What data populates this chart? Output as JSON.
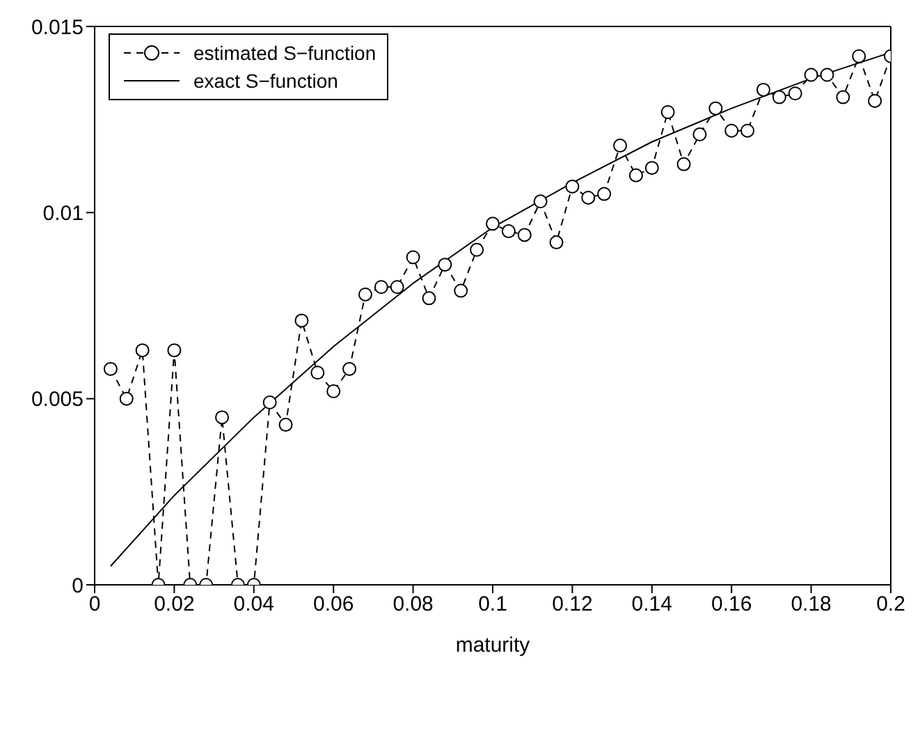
{
  "chart_data": {
    "type": "line",
    "xlabel": "maturity",
    "xlim": [
      0,
      0.2
    ],
    "xticks": [
      0,
      0.02,
      0.04,
      0.06,
      0.08,
      0.1,
      0.12,
      0.14,
      0.16,
      0.18,
      0.2
    ],
    "ylim": [
      0,
      0.015
    ],
    "yticks": [
      0,
      0.005,
      0.01,
      0.015
    ],
    "legend": "top left",
    "series": [
      {
        "name": "estimated S−function",
        "color": "#000000",
        "marker": "circle",
        "line_style": "dashed",
        "x": [
          0.004,
          0.008,
          0.012,
          0.016,
          0.02,
          0.024,
          0.028,
          0.032,
          0.036,
          0.04,
          0.044,
          0.048,
          0.052,
          0.056,
          0.06,
          0.064,
          0.068,
          0.072,
          0.076,
          0.08,
          0.084,
          0.088,
          0.092,
          0.096,
          0.1,
          0.104,
          0.108,
          0.112,
          0.116,
          0.12,
          0.124,
          0.128,
          0.132,
          0.136,
          0.14,
          0.144,
          0.148,
          0.152,
          0.156,
          0.16,
          0.164,
          0.168,
          0.172,
          0.176,
          0.18,
          0.184,
          0.188,
          0.192,
          0.196,
          0.2
        ],
        "values": [
          0.0058,
          0.005,
          0.0063,
          0,
          0.0063,
          0,
          0,
          0.0045,
          0,
          0,
          0.0049,
          0.0043,
          0.0071,
          0.0057,
          0.0052,
          0.0058,
          0.0078,
          0.008,
          0.008,
          0.0088,
          0.0077,
          0.0086,
          0.0079,
          0.009,
          0.0097,
          0.0095,
          0.0094,
          0.0103,
          0.0092,
          0.0107,
          0.0104,
          0.0105,
          0.0118,
          0.011,
          0.0112,
          0.0127,
          0.0113,
          0.0121,
          0.0128,
          0.0122,
          0.0122,
          0.0133,
          0.0131,
          0.0132,
          0.0137,
          0.0137,
          0.0131,
          0.0142,
          0.013,
          0.0142
        ]
      },
      {
        "name": "exact S−function",
        "color": "#000000",
        "marker": "none",
        "line_style": "solid",
        "x": [
          0.004,
          0.02,
          0.04,
          0.06,
          0.08,
          0.1,
          0.12,
          0.14,
          0.16,
          0.18,
          0.2
        ],
        "values": [
          0.0005,
          0.0024,
          0.0045,
          0.0064,
          0.0081,
          0.0096,
          0.0108,
          0.0119,
          0.0128,
          0.0136,
          0.0143
        ]
      }
    ]
  }
}
